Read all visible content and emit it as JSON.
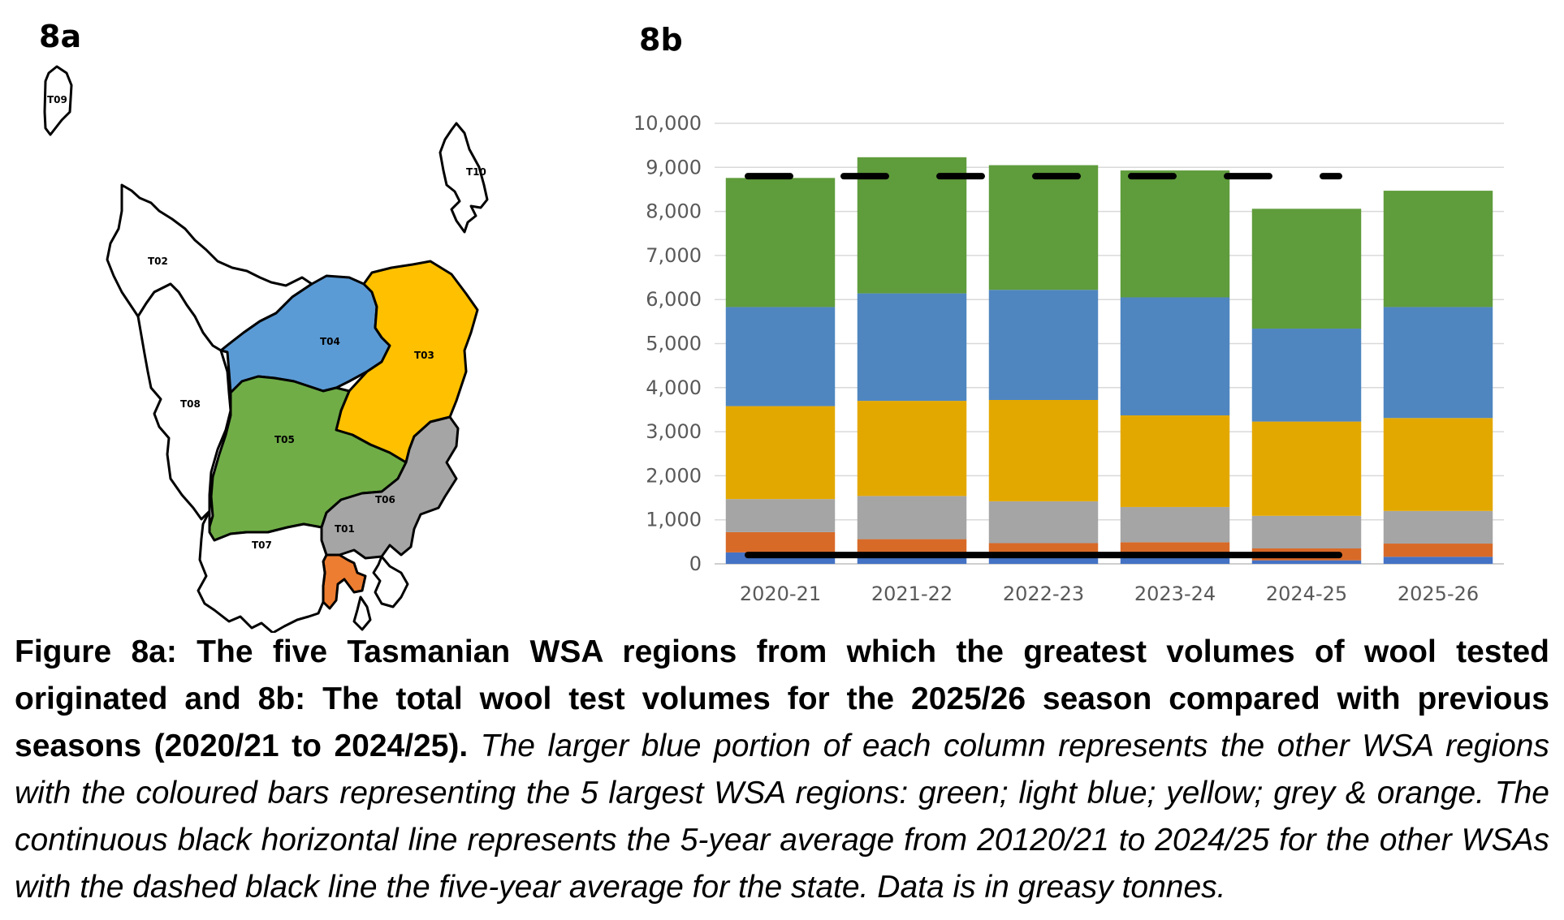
{
  "panels": {
    "map_label": "8a",
    "chart_label": "8b"
  },
  "map": {
    "regions": [
      {
        "code": "T02",
        "color": "#ffffff"
      },
      {
        "code": "T03",
        "color": "#ffc000"
      },
      {
        "code": "T04",
        "color": "#5b9bd5"
      },
      {
        "code": "T05",
        "color": "#70ad47"
      },
      {
        "code": "T06",
        "color": "#a5a5a5"
      },
      {
        "code": "T01",
        "color": "#ed7d31"
      },
      {
        "code": "T07",
        "color": "#ffffff"
      },
      {
        "code": "T08",
        "color": "#ffffff"
      },
      {
        "code": "T09",
        "color": "#ffffff"
      },
      {
        "code": "T10",
        "color": "#ffffff"
      }
    ]
  },
  "chart_data": {
    "type": "bar",
    "stacked": true,
    "title": "",
    "xlabel": "",
    "ylabel": "",
    "ylim": [
      0,
      10000
    ],
    "yticks": [
      "0",
      "1,000",
      "2,000",
      "3,000",
      "4,000",
      "5,000",
      "6,000",
      "7,000",
      "8,000",
      "9,000",
      "10,000"
    ],
    "grid": true,
    "legend": "none",
    "categories": [
      "2020-21",
      "2021-22",
      "2022-23",
      "2023-24",
      "2024-25",
      "2025-26"
    ],
    "series": [
      {
        "color": "#4472c4",
        "values": [
          260,
          140,
          140,
          140,
          80,
          160
        ]
      },
      {
        "color": "#d86a28",
        "values": [
          460,
          420,
          330,
          350,
          270,
          300
        ]
      },
      {
        "color": "#a5a5a5",
        "values": [
          750,
          980,
          950,
          800,
          740,
          740
        ]
      },
      {
        "color": "#e3a800",
        "values": [
          2110,
          2160,
          2300,
          2080,
          2140,
          2110
        ]
      },
      {
        "color": "#4f86c0",
        "values": [
          2250,
          2440,
          2500,
          2680,
          2110,
          2520
        ]
      },
      {
        "color": "#5f9c3c",
        "values": [
          2930,
          3090,
          2830,
          2880,
          2720,
          2640
        ]
      }
    ],
    "totals": [
      8760,
      9230,
      9050,
      8930,
      8060,
      8470
    ],
    "dashed_average": {
      "value": 8800,
      "color": "#000000"
    },
    "solid_average": {
      "value": 200,
      "color": "#000000"
    }
  },
  "caption": {
    "bold": "Figure 8a: The five Tasmanian WSA regions from which the greatest volumes of wool tested originated and 8b: The total wool test volumes for the 2025/26 season compared with previous seasons (2020/21 to 2024/25).",
    "italic": "The larger blue portion of each column represents the other WSA regions with the coloured bars representing the 5 largest WSA regions: green; light blue; yellow; grey & orange. The continuous black horizontal line represents the 5-year average from 20120/21 to 2024/25 for the other WSAs with the dashed black line the five-year average for the state. Data is in greasy tonnes."
  }
}
